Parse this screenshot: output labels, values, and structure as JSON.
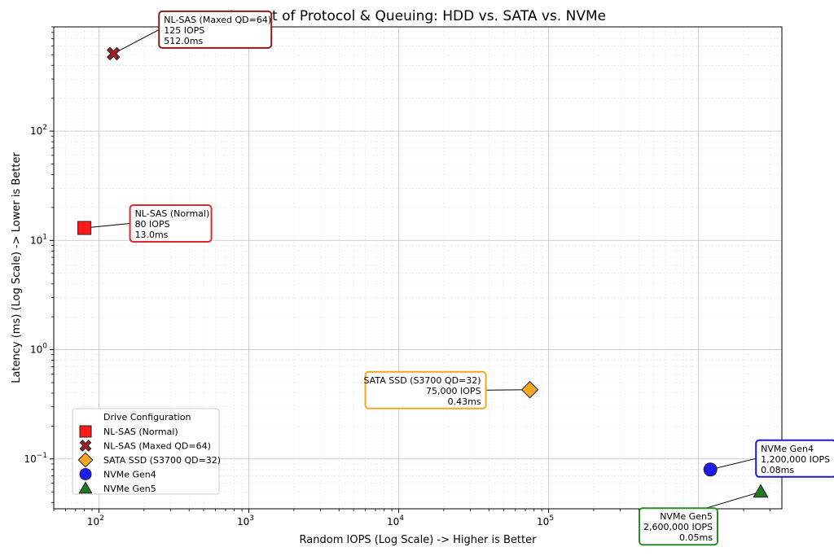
{
  "chart_data": {
    "type": "scatter",
    "title": "Impact of Protocol & Queuing: HDD vs. SATA vs. NVMe",
    "xlabel": "Random IOPS (Log Scale) -> Higher is Better",
    "ylabel": "Latency (ms) (Log Scale) -> Lower is Better",
    "xscale": "log",
    "yscale": "log",
    "xlim": [
      50,
      3600000
    ],
    "ylim": [
      0.035,
      900
    ],
    "x_ticks": [
      {
        "value": 100,
        "base": "10",
        "exp": "2"
      },
      {
        "value": 1000,
        "base": "10",
        "exp": "3"
      },
      {
        "value": 10000,
        "base": "10",
        "exp": "4"
      },
      {
        "value": 100000,
        "base": "10",
        "exp": "5"
      }
    ],
    "y_ticks": [
      {
        "value": 0.1,
        "base": "10",
        "exp": "−1"
      },
      {
        "value": 1,
        "base": "10",
        "exp": "0"
      },
      {
        "value": 10,
        "base": "10",
        "exp": "1"
      },
      {
        "value": 100,
        "base": "10",
        "exp": "2"
      }
    ],
    "grid": true,
    "legend": {
      "title": "Drive Configuration",
      "placement": "lower-left"
    },
    "series": [
      {
        "name": "NL-SAS (Normal)",
        "x": 80,
        "y": 13.0,
        "marker": "square",
        "color": "#ff1a1a",
        "annotation": [
          "NL-SAS (Normal)",
          "80 IOPS",
          "13.0ms"
        ],
        "annotation_color": "#e8272a",
        "annotation_align": "left"
      },
      {
        "name": "NL-SAS (Maxed QD=64)",
        "x": 125,
        "y": 512.0,
        "marker": "x",
        "color": "#a11d21",
        "annotation": [
          "NL-SAS (Maxed QD=64)",
          "125 IOPS",
          "512.0ms"
        ],
        "annotation_color": "#8b1a1a",
        "annotation_align": "left"
      },
      {
        "name": "SATA SSD (S3700 QD=32)",
        "x": 75000,
        "y": 0.43,
        "marker": "diamond",
        "color": "#f5a623",
        "annotation": [
          "SATA SSD (S3700 QD=32)",
          "75,000 IOPS",
          "0.43ms"
        ],
        "annotation_color": "#f5a623",
        "annotation_align": "right"
      },
      {
        "name": "NVMe Gen4",
        "x": 1200000,
        "y": 0.08,
        "marker": "circle",
        "color": "#1c1cf0",
        "annotation": [
          "NVMe Gen4",
          "1,200,000 IOPS",
          "0.08ms"
        ],
        "annotation_color": "#1c1cd6",
        "annotation_align": "left"
      },
      {
        "name": "NVMe Gen5",
        "x": 2600000,
        "y": 0.05,
        "marker": "triangle",
        "color": "#1f7a1f",
        "annotation": [
          "NVMe Gen5",
          "2,600,000 IOPS",
          "0.05ms"
        ],
        "annotation_color": "#2a8a2a",
        "annotation_align": "right"
      }
    ]
  }
}
